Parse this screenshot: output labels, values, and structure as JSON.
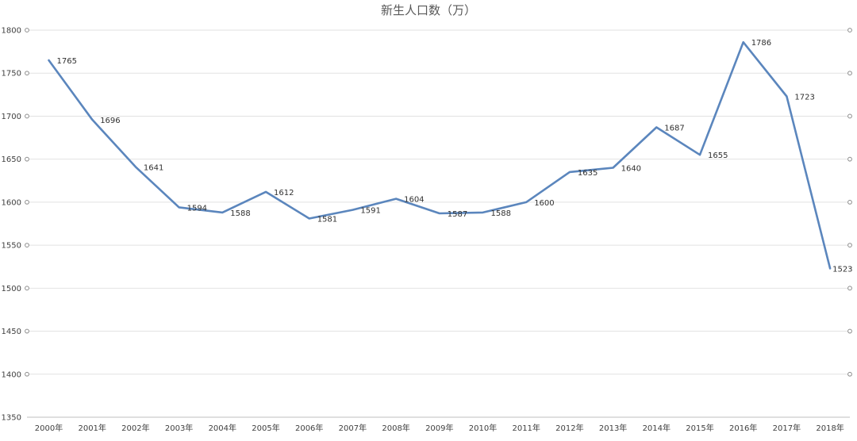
{
  "chart_data": {
    "type": "line",
    "title": "新生人口数（万）",
    "xlabel": "",
    "ylabel": "",
    "ylim": [
      1350,
      1800
    ],
    "y_ticks": [
      1350,
      1400,
      1450,
      1500,
      1550,
      1600,
      1650,
      1700,
      1750,
      1800
    ],
    "categories": [
      "2000年",
      "2001年",
      "2002年",
      "2003年",
      "2004年",
      "2005年",
      "2006年",
      "2007年",
      "2008年",
      "2009年",
      "2010年",
      "2011年",
      "2012年",
      "2013年",
      "2014年",
      "2015年",
      "2016年",
      "2017年",
      "2018年"
    ],
    "series": [
      {
        "name": "",
        "color": "#5b86bd",
        "values": [
          1765,
          1696,
          1641,
          1594,
          1588,
          1612,
          1581,
          1591,
          1604,
          1587,
          1588,
          1600,
          1635,
          1640,
          1687,
          1655,
          1786,
          1723,
          1523
        ]
      }
    ],
    "data_labels": true,
    "grid": true,
    "legend": "none"
  }
}
